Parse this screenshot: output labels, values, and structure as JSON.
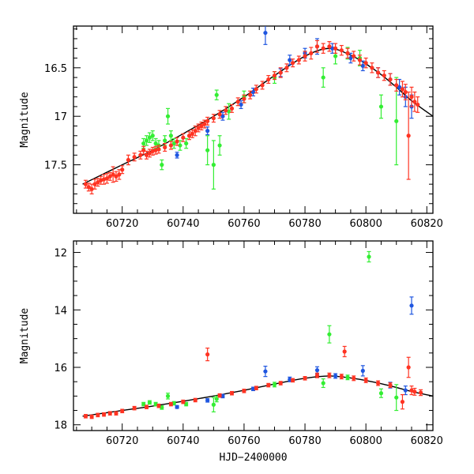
{
  "chart_data": [
    {
      "type": "scatter",
      "panel": "top",
      "ylabel": "Magnitude",
      "xlabel": "",
      "xlim": [
        60704,
        60822
      ],
      "ylim": [
        18.0,
        16.07
      ],
      "y_inverted": true,
      "xticks": [
        60720,
        60740,
        60760,
        60780,
        60800,
        60820
      ],
      "yticks": [
        16.5,
        17,
        17.5
      ],
      "ytick_labels": [
        "16.5",
        "17",
        "17.5"
      ],
      "y_minor_step": 0.1,
      "x_minor_step": 5,
      "model_curve": {
        "x": [
          60707,
          60720,
          60730,
          60740,
          60750,
          60760,
          60770,
          60780,
          60788,
          60795,
          60800,
          60805,
          60810,
          60815,
          60822
        ],
        "y": [
          17.7,
          17.5,
          17.35,
          17.18,
          17.0,
          16.8,
          16.58,
          16.38,
          16.3,
          16.37,
          16.46,
          16.57,
          16.7,
          16.84,
          17.0
        ]
      },
      "series": [
        {
          "color": "#ff3322",
          "x": [
            60708,
            60709,
            60710,
            60711,
            60712,
            60713,
            60714,
            60715,
            60716,
            60717,
            60718,
            60719,
            60720,
            60722,
            60724,
            60726,
            60727,
            60728,
            60729,
            60730,
            60731,
            60732,
            60734,
            60736,
            60738,
            60740,
            60742,
            60743,
            60744,
            60745,
            60746,
            60747,
            60748,
            60750,
            60752,
            60754,
            60756,
            60758,
            60760,
            60762,
            60764,
            60766,
            60768,
            60770,
            60772,
            60774,
            60776,
            60778,
            60780,
            60782,
            60784,
            60786,
            60788,
            60790,
            60792,
            60794,
            60796,
            60798,
            60800,
            60802,
            60804,
            60806,
            60808,
            60810,
            60812,
            60813,
            60814,
            60815,
            60816,
            60817
          ],
          "y": [
            17.7,
            17.73,
            17.75,
            17.7,
            17.68,
            17.66,
            17.65,
            17.64,
            17.62,
            17.6,
            17.62,
            17.6,
            17.55,
            17.45,
            17.42,
            17.4,
            17.35,
            17.4,
            17.38,
            17.36,
            17.35,
            17.34,
            17.32,
            17.3,
            17.26,
            17.22,
            17.2,
            17.18,
            17.15,
            17.12,
            17.1,
            17.08,
            17.05,
            17.02,
            16.98,
            16.94,
            16.92,
            16.85,
            16.82,
            16.78,
            16.72,
            16.68,
            16.62,
            16.58,
            16.55,
            16.5,
            16.45,
            16.42,
            16.38,
            16.35,
            16.28,
            16.3,
            16.28,
            16.3,
            16.32,
            16.35,
            16.38,
            16.42,
            16.45,
            16.5,
            16.55,
            16.58,
            16.62,
            16.68,
            16.72,
            16.75,
            17.2,
            16.8,
            16.85,
            16.88
          ],
          "err": [
            0.04,
            0.04,
            0.05,
            0.05,
            0.04,
            0.04,
            0.05,
            0.05,
            0.04,
            0.08,
            0.05,
            0.05,
            0.04,
            0.05,
            0.04,
            0.04,
            0.04,
            0.04,
            0.04,
            0.04,
            0.04,
            0.04,
            0.04,
            0.04,
            0.04,
            0.04,
            0.04,
            0.04,
            0.05,
            0.04,
            0.04,
            0.04,
            0.04,
            0.04,
            0.04,
            0.04,
            0.04,
            0.04,
            0.04,
            0.04,
            0.04,
            0.04,
            0.04,
            0.04,
            0.05,
            0.04,
            0.04,
            0.04,
            0.05,
            0.06,
            0.06,
            0.05,
            0.05,
            0.05,
            0.05,
            0.05,
            0.05,
            0.05,
            0.05,
            0.05,
            0.05,
            0.05,
            0.06,
            0.06,
            0.08,
            0.08,
            0.45,
            0.1,
            0.1,
            0.08
          ]
        },
        {
          "color": "#1f56e0",
          "x": [
            60738,
            60748,
            60753,
            60759,
            60763,
            60767,
            60772,
            60775,
            60780,
            60784,
            60789,
            60795,
            60799,
            60804,
            60808,
            60811,
            60813,
            60815
          ],
          "y": [
            17.4,
            17.15,
            17.0,
            16.88,
            16.75,
            16.14,
            16.55,
            16.42,
            16.35,
            16.28,
            16.3,
            16.4,
            16.48,
            16.55,
            16.62,
            16.7,
            16.8,
            16.9
          ],
          "err": [
            0.03,
            0.04,
            0.04,
            0.04,
            0.04,
            0.12,
            0.04,
            0.05,
            0.05,
            0.08,
            0.05,
            0.05,
            0.05,
            0.05,
            0.06,
            0.08,
            0.1,
            0.12
          ]
        },
        {
          "color": "#33ee33",
          "x": [
            60727,
            60728,
            60729,
            60730,
            60731,
            60732,
            60733,
            60734,
            60735,
            60736,
            60737,
            60739,
            60741,
            60748,
            60750,
            60751,
            60752,
            60755,
            60760,
            60770,
            60786,
            60790,
            60794,
            60798,
            60805,
            60810
          ],
          "y": [
            17.28,
            17.25,
            17.22,
            17.2,
            17.28,
            17.3,
            17.5,
            17.25,
            17.0,
            17.2,
            17.28,
            17.3,
            17.28,
            17.35,
            17.5,
            16.78,
            17.3,
            16.95,
            16.8,
            16.6,
            16.6,
            16.38,
            16.35,
            16.4,
            16.9,
            17.05
          ],
          "err": [
            0.05,
            0.05,
            0.05,
            0.05,
            0.05,
            0.05,
            0.05,
            0.05,
            0.08,
            0.05,
            0.05,
            0.05,
            0.05,
            0.15,
            0.25,
            0.05,
            0.1,
            0.08,
            0.06,
            0.06,
            0.1,
            0.08,
            0.06,
            0.08,
            0.12,
            0.45
          ]
        }
      ]
    },
    {
      "type": "scatter",
      "panel": "bottom",
      "ylabel": "Magnitude",
      "xlabel": "HJD−2400000",
      "xlim": [
        60704,
        60822
      ],
      "ylim": [
        18.2,
        11.6
      ],
      "y_inverted": true,
      "xticks": [
        60720,
        60740,
        60760,
        60780,
        60800,
        60820
      ],
      "yticks": [
        12,
        14,
        16,
        18
      ],
      "ytick_labels": [
        "12",
        "14",
        "16",
        "18"
      ],
      "y_minor_step": 0.5,
      "x_minor_step": 5,
      "model_curve": {
        "x": [
          60707,
          60720,
          60730,
          60740,
          60750,
          60760,
          60770,
          60780,
          60788,
          60795,
          60800,
          60805,
          60810,
          60815,
          60822
        ],
        "y": [
          17.7,
          17.5,
          17.35,
          17.18,
          17.0,
          16.8,
          16.58,
          16.38,
          16.3,
          16.37,
          16.46,
          16.57,
          16.7,
          16.84,
          17.0
        ]
      },
      "series": [
        {
          "color": "#ff3322",
          "x": [
            60708,
            60710,
            60712,
            60714,
            60716,
            60718,
            60720,
            60724,
            60728,
            60732,
            60736,
            60740,
            60744,
            60748,
            60752,
            60756,
            60760,
            60764,
            60768,
            60772,
            60776,
            60780,
            60784,
            60788,
            60792,
            60793,
            60796,
            60800,
            60804,
            60808,
            60812,
            60814,
            60815,
            60816,
            60818
          ],
          "y": [
            17.7,
            17.72,
            17.66,
            17.64,
            17.6,
            17.6,
            17.52,
            17.42,
            17.38,
            17.34,
            17.28,
            17.2,
            17.14,
            15.55,
            16.98,
            16.9,
            16.82,
            16.72,
            16.62,
            16.55,
            16.45,
            16.38,
            16.28,
            16.28,
            16.32,
            15.45,
            16.38,
            16.45,
            16.55,
            16.62,
            17.2,
            16.0,
            16.8,
            16.85,
            16.88
          ],
          "err": [
            0.06,
            0.06,
            0.06,
            0.06,
            0.06,
            0.06,
            0.06,
            0.06,
            0.06,
            0.06,
            0.06,
            0.06,
            0.06,
            0.22,
            0.06,
            0.06,
            0.06,
            0.06,
            0.06,
            0.06,
            0.06,
            0.06,
            0.08,
            0.08,
            0.08,
            0.18,
            0.08,
            0.08,
            0.08,
            0.08,
            0.25,
            0.35,
            0.15,
            0.12,
            0.1
          ]
        },
        {
          "color": "#1f56e0",
          "x": [
            60738,
            60748,
            60753,
            60763,
            60767,
            60775,
            60784,
            60790,
            60799,
            60808,
            60813,
            60815
          ],
          "y": [
            17.38,
            17.15,
            17.0,
            16.75,
            16.14,
            16.42,
            16.1,
            16.3,
            16.12,
            16.62,
            16.8,
            13.85
          ],
          "err": [
            0.05,
            0.06,
            0.06,
            0.06,
            0.18,
            0.08,
            0.12,
            0.08,
            0.18,
            0.1,
            0.15,
            0.3
          ]
        },
        {
          "color": "#33ee33",
          "x": [
            60727,
            60729,
            60731,
            60733,
            60735,
            60737,
            60741,
            60750,
            60751,
            60770,
            60786,
            60788,
            60794,
            60801,
            60805,
            60810
          ],
          "y": [
            17.28,
            17.22,
            17.28,
            17.4,
            17.0,
            17.25,
            17.28,
            17.3,
            17.1,
            16.6,
            16.55,
            14.85,
            16.35,
            12.15,
            16.9,
            17.05
          ],
          "err": [
            0.06,
            0.06,
            0.06,
            0.06,
            0.1,
            0.06,
            0.06,
            0.25,
            0.1,
            0.08,
            0.15,
            0.3,
            0.08,
            0.18,
            0.15,
            0.45
          ]
        }
      ]
    }
  ]
}
